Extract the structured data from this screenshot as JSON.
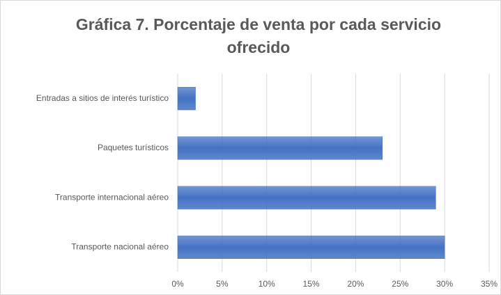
{
  "chart_data": {
    "type": "hbar",
    "title": "Gráfica 7. Porcentaje de venta por cada servicio ofrecido",
    "categories": [
      "Entradas a sitios de interés turístico",
      "Paquetes turísticos",
      "Transporte internacional aéreo",
      "Transporte nacional aéreo"
    ],
    "values": [
      2,
      23,
      29,
      30
    ],
    "color": "#4472c4",
    "xlim": [
      0,
      35
    ],
    "xticks": [
      {
        "value": 0,
        "label": "0%"
      },
      {
        "value": 5,
        "label": "5%"
      },
      {
        "value": 10,
        "label": "10%"
      },
      {
        "value": 15,
        "label": "15%"
      },
      {
        "value": 20,
        "label": "20%"
      },
      {
        "value": 25,
        "label": "25%"
      },
      {
        "value": 30,
        "label": "30%"
      },
      {
        "value": 35,
        "label": "35%"
      }
    ],
    "grid": true
  }
}
